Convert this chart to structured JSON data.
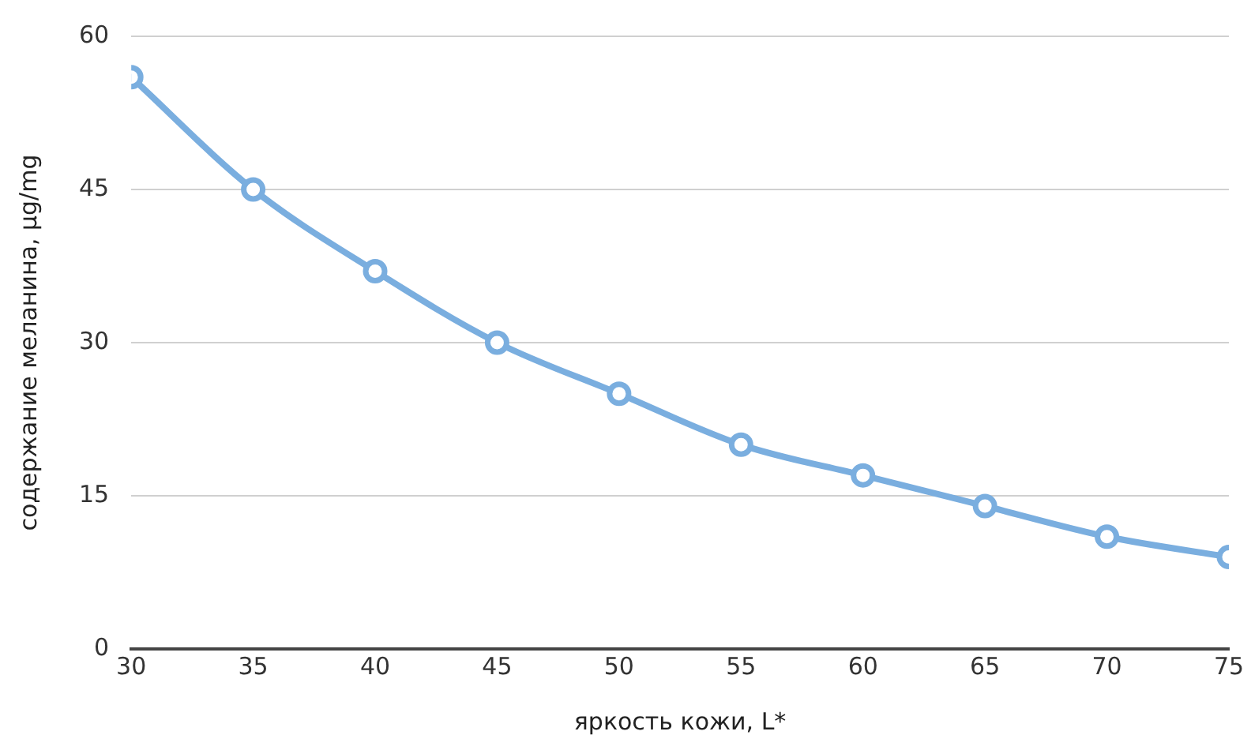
{
  "chart_data": {
    "type": "line",
    "xlabel": "яркость кожи, L*",
    "ylabel": "содержание меланина, µg/mg",
    "x": [
      30,
      35,
      40,
      45,
      50,
      55,
      60,
      65,
      70,
      75
    ],
    "series": [
      {
        "color": "#7aaedf",
        "values": [
          56,
          45,
          37,
          30,
          25,
          20,
          17,
          14,
          11,
          9
        ]
      }
    ],
    "xlim": [
      30,
      75
    ],
    "xticks": [
      30,
      35,
      40,
      45,
      50,
      55,
      60,
      65,
      70,
      75
    ],
    "ylim": [
      0,
      60
    ],
    "yticks": [
      0,
      15,
      30,
      45,
      60
    ],
    "grid": "y",
    "marker": "circle",
    "line_style": "solid",
    "legend": false
  }
}
